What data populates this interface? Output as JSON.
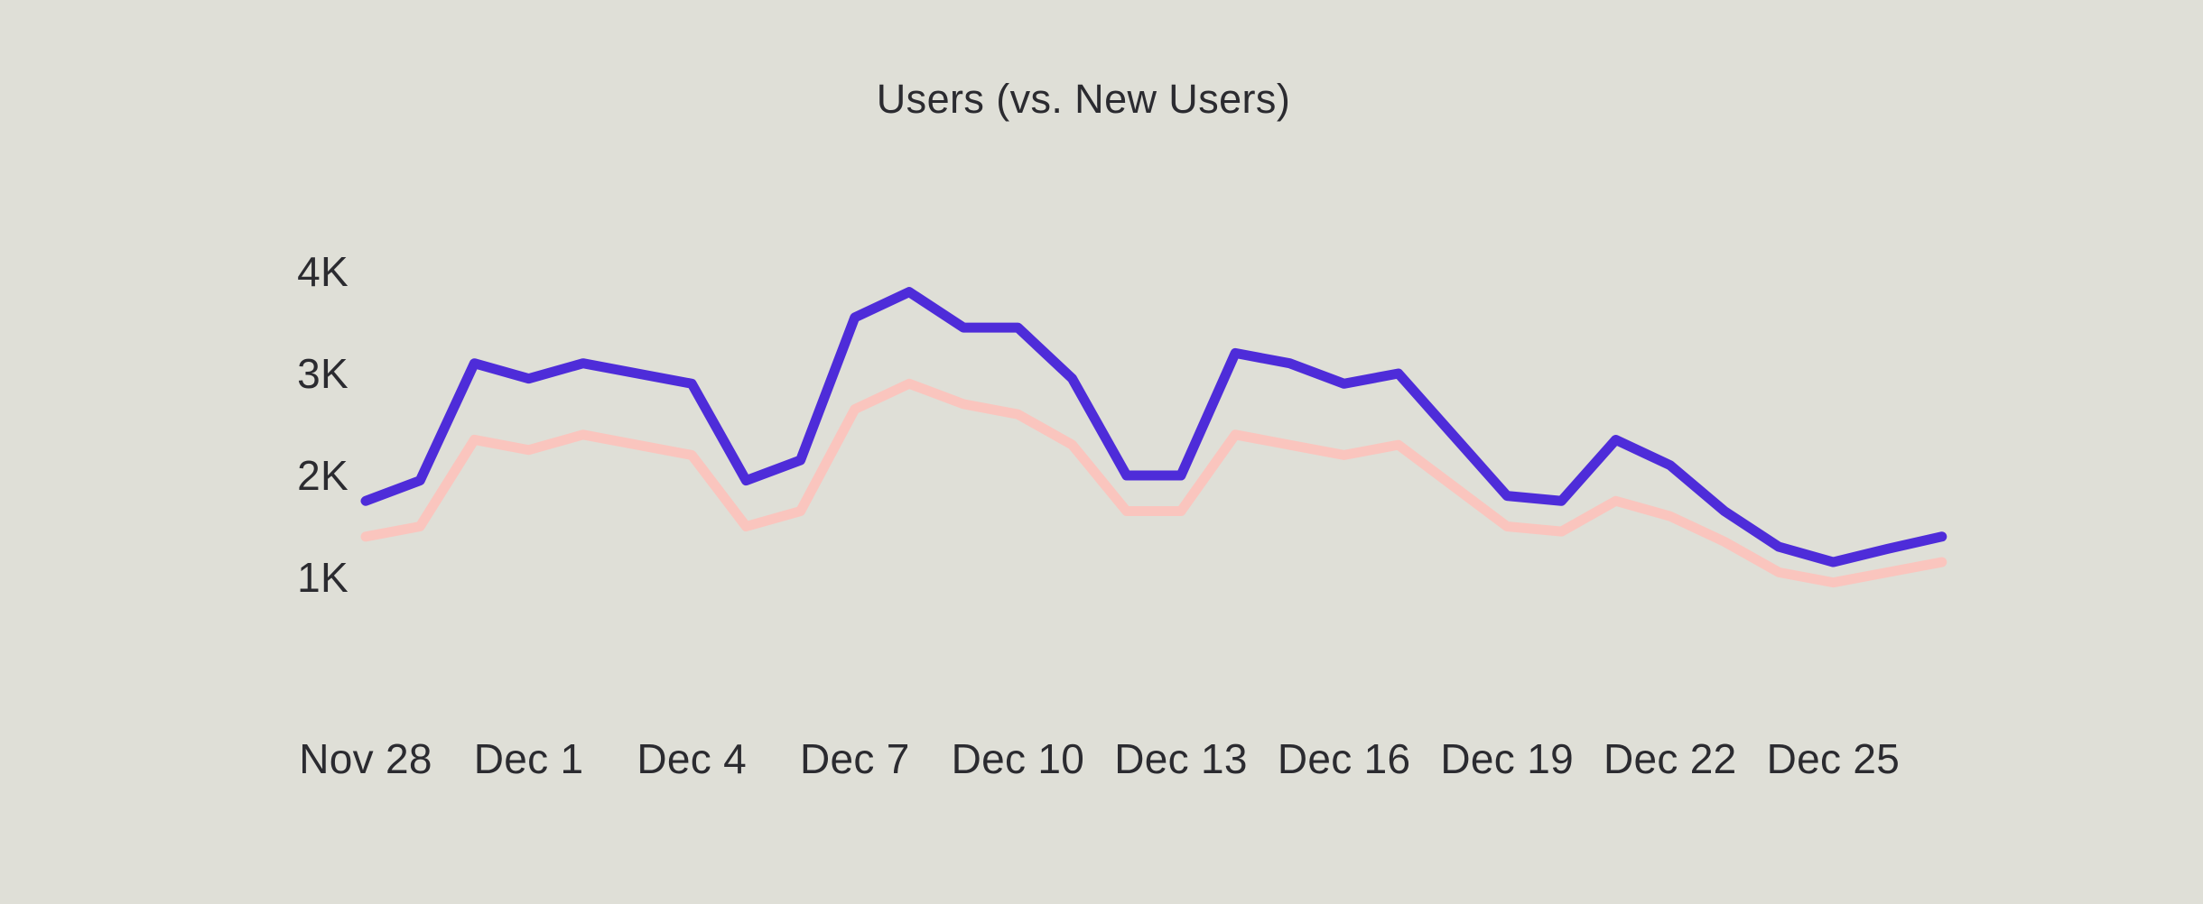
{
  "page": {
    "background_color": "#dfdfd7",
    "text_color": "#2b2b30"
  },
  "chart_data": {
    "type": "line",
    "title": "Users (vs. New Users)",
    "x": [
      "Nov 28",
      "Nov 29",
      "Nov 30",
      "Dec 1",
      "Dec 2",
      "Dec 3",
      "Dec 4",
      "Dec 5",
      "Dec 6",
      "Dec 7",
      "Dec 8",
      "Dec 9",
      "Dec 10",
      "Dec 11",
      "Dec 12",
      "Dec 13",
      "Dec 14",
      "Dec 15",
      "Dec 16",
      "Dec 17",
      "Dec 18",
      "Dec 19",
      "Dec 20",
      "Dec 21",
      "Dec 22",
      "Dec 23",
      "Dec 24",
      "Dec 25",
      "Dec 26",
      "Dec 27"
    ],
    "x_tick_labels": [
      "Nov 28",
      "Dec 1",
      "Dec 4",
      "Dec 7",
      "Dec 10",
      "Dec 13",
      "Dec 16",
      "Dec 19",
      "Dec 22",
      "Dec 25"
    ],
    "x_tick_every": 3,
    "y_ticks": [
      {
        "label": "1K",
        "value": 1000
      },
      {
        "label": "2K",
        "value": 2000
      },
      {
        "label": "3K",
        "value": 3000
      },
      {
        "label": "4K",
        "value": 4000
      }
    ],
    "ylim": [
      0,
      4500
    ],
    "grid": false,
    "legend_position": "none",
    "series": [
      {
        "name": "Users",
        "color": "#4e2cd9",
        "values": [
          1750,
          1950,
          3100,
          2950,
          3100,
          3000,
          2900,
          1950,
          2150,
          3550,
          3800,
          3450,
          3450,
          2950,
          2000,
          2000,
          3200,
          3100,
          2900,
          3000,
          2400,
          1800,
          1750,
          2350,
          2100,
          1650,
          1300,
          1150,
          1280,
          1400
        ]
      },
      {
        "name": "New Users",
        "color": "#fac5be",
        "values": [
          1400,
          1500,
          2350,
          2250,
          2400,
          2300,
          2200,
          1500,
          1650,
          2650,
          2900,
          2700,
          2600,
          2300,
          1650,
          1650,
          2400,
          2300,
          2200,
          2300,
          1900,
          1500,
          1450,
          1750,
          1600,
          1350,
          1050,
          950,
          1050,
          1150
        ]
      }
    ]
  }
}
